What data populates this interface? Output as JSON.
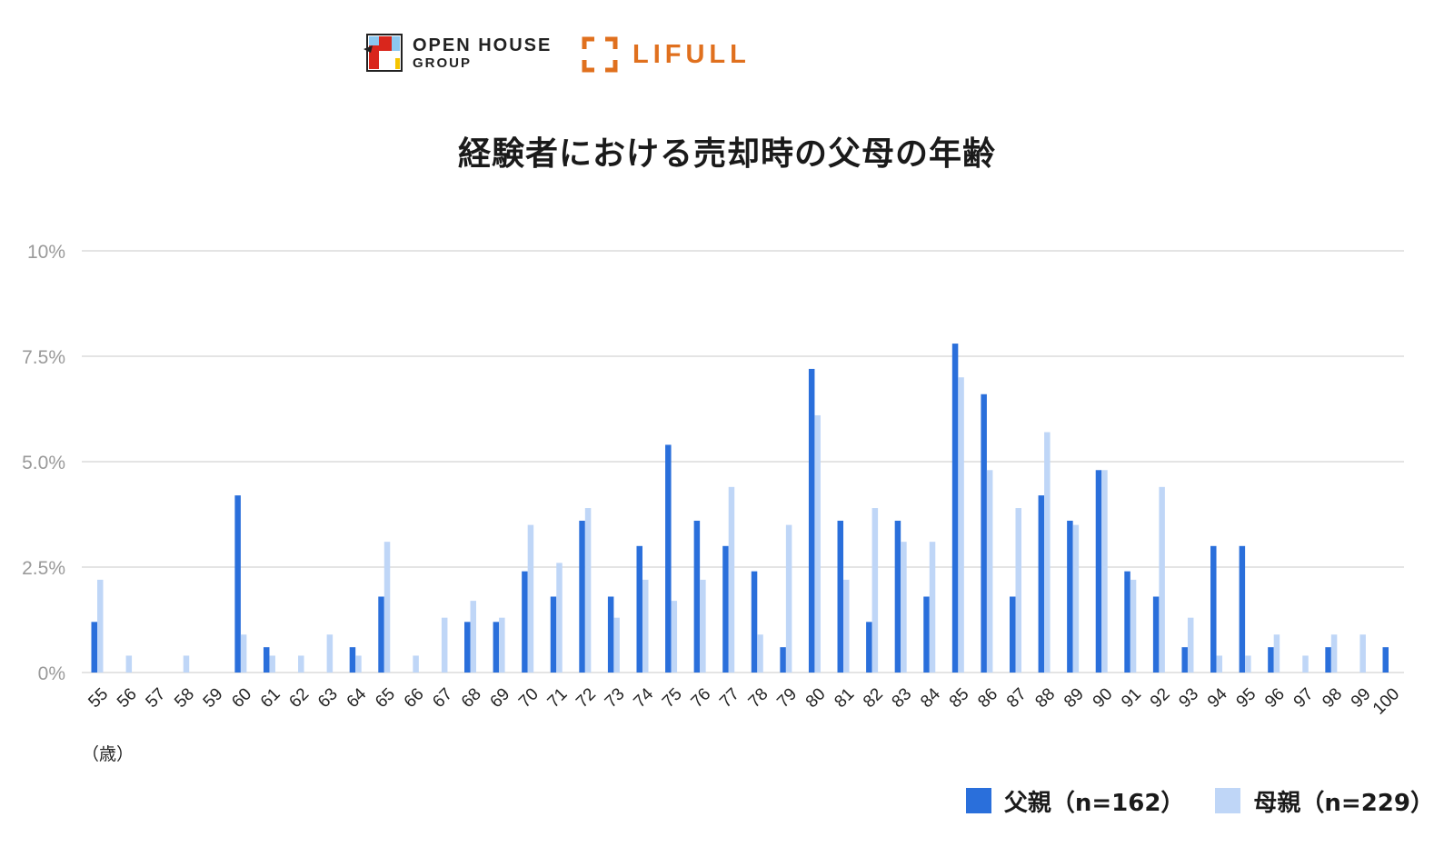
{
  "logos": {
    "openhouse_line1": "OPEN HOUSE",
    "openhouse_line2": "GROUP",
    "lifull": "LIFULL"
  },
  "colors": {
    "father": "#2a6fdb",
    "mother": "#bfd6f7",
    "lifull_orange": "#e0701e"
  },
  "chart_data": {
    "type": "bar",
    "title": "経験者における売却時の父母の年齢",
    "xlabel": "（歳）",
    "ylabel": "",
    "ylim": [
      0,
      10
    ],
    "yticks": [
      {
        "value": 0,
        "label": "0%"
      },
      {
        "value": 2.5,
        "label": "2.5%"
      },
      {
        "value": 5,
        "label": "5.0%"
      },
      {
        "value": 7.5,
        "label": "7.5%"
      },
      {
        "value": 10,
        "label": "10%"
      }
    ],
    "grid": true,
    "legend_position": "bottom-right",
    "categories": [
      "55",
      "56",
      "57",
      "58",
      "59",
      "60",
      "61",
      "62",
      "63",
      "64",
      "65",
      "66",
      "67",
      "68",
      "69",
      "70",
      "71",
      "72",
      "73",
      "74",
      "75",
      "76",
      "77",
      "78",
      "79",
      "80",
      "81",
      "82",
      "83",
      "84",
      "85",
      "86",
      "87",
      "88",
      "89",
      "90",
      "91",
      "92",
      "93",
      "94",
      "95",
      "96",
      "97",
      "98",
      "99",
      "100"
    ],
    "series": [
      {
        "name": "父親（n=162）",
        "color": "#2a6fdb",
        "values": [
          1.2,
          0,
          0,
          0,
          0,
          4.2,
          0.6,
          0,
          0,
          0.6,
          1.8,
          0,
          0,
          1.2,
          1.2,
          2.4,
          1.8,
          3.6,
          1.8,
          3.0,
          5.4,
          3.6,
          3.0,
          2.4,
          0.6,
          7.2,
          3.6,
          1.2,
          3.6,
          1.8,
          7.8,
          6.6,
          1.8,
          4.2,
          3.6,
          4.8,
          2.4,
          1.8,
          0.6,
          3.0,
          3.0,
          0.6,
          0,
          0.6,
          0,
          0.6
        ]
      },
      {
        "name": "母親（n=229）",
        "color": "#bfd6f7",
        "values": [
          2.2,
          0.4,
          0,
          0.4,
          0,
          0.9,
          0.4,
          0.4,
          0.9,
          0.4,
          3.1,
          0.4,
          1.3,
          1.7,
          1.3,
          3.5,
          2.6,
          3.9,
          1.3,
          2.2,
          1.7,
          2.2,
          4.4,
          0.9,
          3.5,
          6.1,
          2.2,
          3.9,
          3.1,
          3.1,
          7.0,
          4.8,
          3.9,
          5.7,
          3.5,
          4.8,
          2.2,
          4.4,
          1.3,
          0.4,
          0.4,
          0.9,
          0.4,
          0.9,
          0.9,
          0
        ]
      }
    ]
  }
}
